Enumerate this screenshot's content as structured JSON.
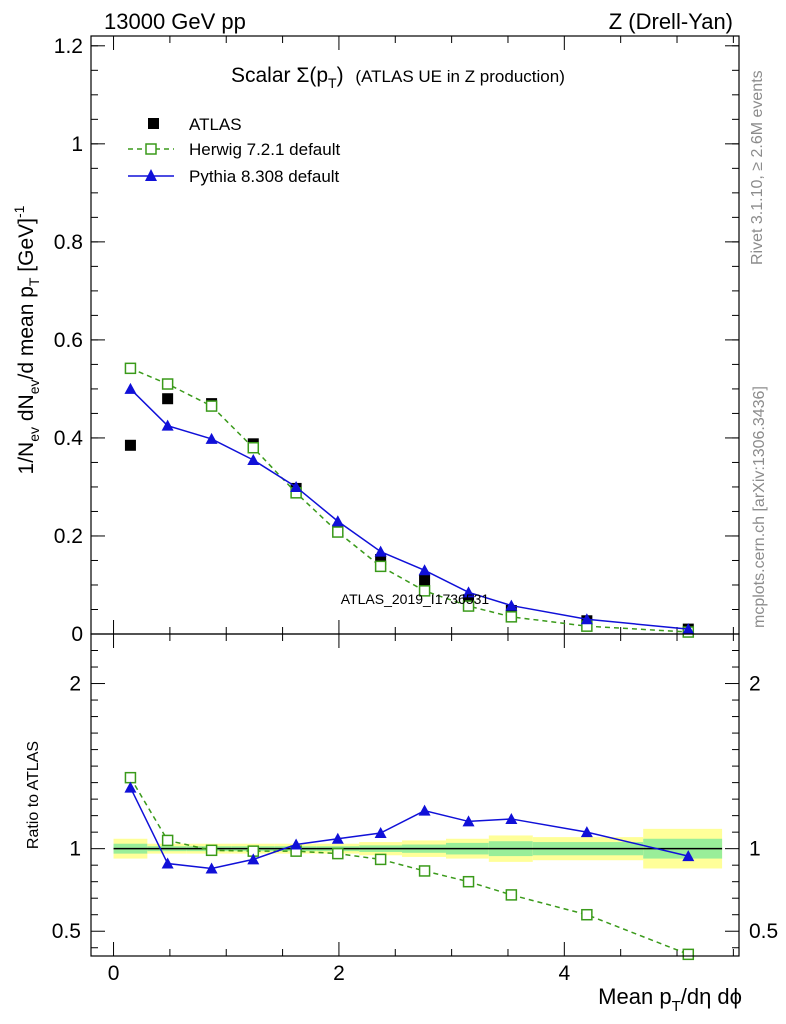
{
  "header": {
    "left": "13000 GeV pp",
    "right": "Z (Drell-Yan)"
  },
  "side_labels": {
    "rivet": "Rivet 3.1.10, ≥ 2.6M events",
    "mcplots": "mcplots.cern.ch [arXiv:1306.3436]"
  },
  "watermark": "ATLAS_2019_I1736531",
  "chart_data": [
    {
      "type": "line",
      "panel": "main",
      "title": {
        "main": "Scalar Σ(p",
        "sub": "T",
        "end": ")",
        "note": "(ATLAS UE in Z production)"
      },
      "ylabel": {
        "p1": "1/N",
        "s1": "ev",
        "p2": " dN",
        "s2": "ev",
        "p3": "/d mean p",
        "s3": "T",
        "p4": " [GeV]",
        "sup": "-1"
      },
      "xlim": [
        -0.2,
        5.55
      ],
      "ylim": [
        0,
        1.22
      ],
      "yticks": [
        {
          "v": 0,
          "label": "0"
        },
        {
          "v": 0.2,
          "label": "0.2"
        },
        {
          "v": 0.4,
          "label": "0.4"
        },
        {
          "v": 0.6,
          "label": "0.6"
        },
        {
          "v": 0.8,
          "label": "0.8"
        },
        {
          "v": 1.0,
          "label": "1"
        },
        {
          "v": 1.2,
          "label": "1.2"
        }
      ],
      "series": [
        {
          "name": "ATLAS",
          "style": "data",
          "color": "#000000",
          "x": [
            0.15,
            0.48,
            0.87,
            1.24,
            1.62,
            1.99,
            2.37,
            2.76,
            3.15,
            3.53,
            4.2,
            5.1
          ],
          "y": [
            0.385,
            0.48,
            0.47,
            0.388,
            0.297,
            0.212,
            0.152,
            0.11,
            0.07,
            0.048,
            0.027,
            0.01
          ]
        },
        {
          "name": "Herwig 7.2.1 default",
          "style": "open-square-dashed",
          "color": "#3a9a1a",
          "x": [
            0.15,
            0.48,
            0.87,
            1.24,
            1.62,
            1.99,
            2.37,
            2.76,
            3.15,
            3.53,
            4.2,
            5.1
          ],
          "y": [
            0.542,
            0.51,
            0.465,
            0.38,
            0.288,
            0.208,
            0.138,
            0.088,
            0.057,
            0.035,
            0.016,
            0.004
          ]
        },
        {
          "name": "Pythia 8.308 default",
          "style": "filled-triangle-solid",
          "color": "#1010d8",
          "x": [
            0.15,
            0.48,
            0.87,
            1.24,
            1.62,
            1.99,
            2.37,
            2.76,
            3.15,
            3.53,
            4.2,
            5.1
          ],
          "y": [
            0.5,
            0.425,
            0.398,
            0.355,
            0.3,
            0.23,
            0.168,
            0.13,
            0.085,
            0.058,
            0.03,
            0.01
          ]
        }
      ]
    },
    {
      "type": "line",
      "panel": "ratio",
      "ylabel": "Ratio to ATLAS",
      "xlabel": {
        "p1": "Mean p",
        "s1": "T",
        "p2": "/dη dϕ"
      },
      "xlim": [
        -0.2,
        5.55
      ],
      "ylim": [
        0.35,
        2.3
      ],
      "xticks": [
        {
          "v": 0,
          "label": "0"
        },
        {
          "v": 2,
          "label": "2"
        },
        {
          "v": 4,
          "label": "4"
        }
      ],
      "yticks": [
        {
          "v": 0.5,
          "label": "0.5"
        },
        {
          "v": 1,
          "label": "1"
        },
        {
          "v": 2,
          "label": "2"
        }
      ],
      "bands": {
        "edges": [
          0,
          0.3,
          0.65,
          1.05,
          1.43,
          1.8,
          2.18,
          2.56,
          2.95,
          3.33,
          3.72,
          4.7,
          5.4
        ],
        "yellow": [
          [
            0.94,
            1.06
          ],
          [
            0.97,
            1.03
          ],
          [
            0.97,
            1.03
          ],
          [
            0.97,
            1.03
          ],
          [
            0.97,
            1.03
          ],
          [
            0.97,
            1.03
          ],
          [
            0.96,
            1.04
          ],
          [
            0.95,
            1.05
          ],
          [
            0.94,
            1.06
          ],
          [
            0.92,
            1.08
          ],
          [
            0.93,
            1.07
          ],
          [
            0.88,
            1.12
          ]
        ],
        "green": [
          [
            0.97,
            1.03
          ],
          [
            0.985,
            1.015
          ],
          [
            0.985,
            1.015
          ],
          [
            0.985,
            1.015
          ],
          [
            0.985,
            1.015
          ],
          [
            0.985,
            1.015
          ],
          [
            0.98,
            1.02
          ],
          [
            0.975,
            1.025
          ],
          [
            0.965,
            1.035
          ],
          [
            0.955,
            1.045
          ],
          [
            0.96,
            1.04
          ],
          [
            0.94,
            1.06
          ]
        ]
      },
      "series": [
        {
          "name": "Herwig 7.2.1 default",
          "style": "open-square-dashed",
          "color": "#3a9a1a",
          "x": [
            0.15,
            0.48,
            0.87,
            1.24,
            1.62,
            1.99,
            2.37,
            2.76,
            3.15,
            3.53,
            4.2,
            5.1
          ],
          "y": [
            1.43,
            1.05,
            0.99,
            0.985,
            0.985,
            0.97,
            0.935,
            0.865,
            0.8,
            0.72,
            0.6,
            0.36
          ]
        },
        {
          "name": "Pythia 8.308 default",
          "style": "filled-triangle-solid",
          "color": "#1010d8",
          "x": [
            0.15,
            0.48,
            0.87,
            1.24,
            1.62,
            1.99,
            2.37,
            2.76,
            3.15,
            3.53,
            4.2,
            5.1
          ],
          "y": [
            1.37,
            0.91,
            0.88,
            0.935,
            1.025,
            1.06,
            1.095,
            1.23,
            1.165,
            1.18,
            1.1,
            0.955
          ]
        }
      ]
    }
  ]
}
